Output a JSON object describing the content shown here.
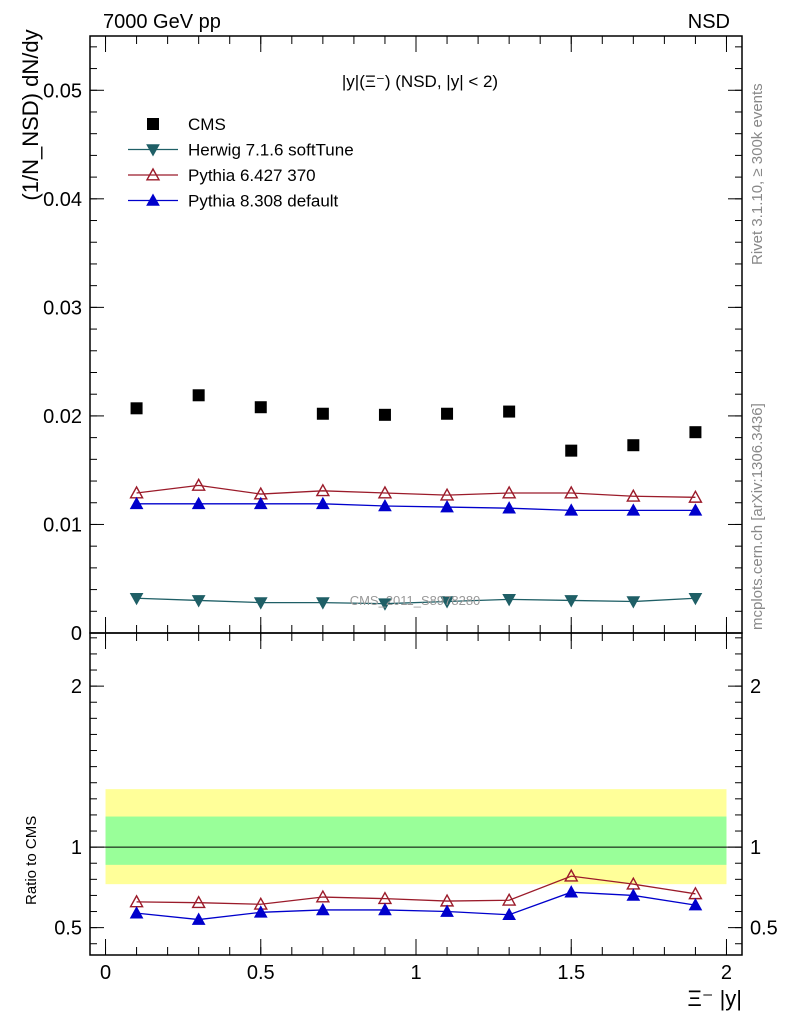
{
  "header": {
    "left": "7000 GeV pp",
    "right": "NSD"
  },
  "side_labels": {
    "rivet": "Rivet 3.1.10, ≥ 300k events",
    "mcplots": "mcplots.cern.ch [arXiv:1306.3436]"
  },
  "colors": {
    "cms": "#000000",
    "herwig": "#1f5f66",
    "pythia6": "#9b1b2a",
    "pythia8": "#0000cc",
    "band_outer": "#ffff99",
    "band_inner": "#99ff99",
    "watermark": "#999999"
  },
  "chart_data": [
    {
      "type": "scatter",
      "title": "|y|(Ξ⁻) (NSD, |y| < 2)",
      "watermark": "CMS_2011_S8978280",
      "ylabel": "(1/N_NSD) dN/dy",
      "ylim": [
        0,
        0.055
      ],
      "yticks": [
        0,
        0.01,
        0.02,
        0.03,
        0.04,
        0.05
      ],
      "ytick_labels": [
        "0",
        "0.01",
        "0.02",
        "0.03",
        "0.04",
        "0.05"
      ],
      "x": [
        0.1,
        0.3,
        0.5,
        0.7,
        0.9,
        1.1,
        1.3,
        1.5,
        1.7,
        1.9
      ],
      "legend_position": "top-left",
      "series": [
        {
          "name": "CMS",
          "key": "cms",
          "marker": "square",
          "line": false,
          "values": [
            0.0207,
            0.0219,
            0.0208,
            0.0202,
            0.0201,
            0.0202,
            0.0204,
            0.0168,
            0.0173,
            0.0185
          ]
        },
        {
          "name": "Herwig 7.1.6 softTune",
          "key": "herwig",
          "marker": "triangle-down",
          "line": true,
          "values": [
            0.0032,
            0.003,
            0.0028,
            0.0028,
            0.0027,
            0.0029,
            0.0031,
            0.003,
            0.0029,
            0.0032
          ]
        },
        {
          "name": "Pythia 6.427 370",
          "key": "pythia6",
          "marker": "triangle-open",
          "line": true,
          "values": [
            0.0129,
            0.0136,
            0.0128,
            0.0131,
            0.0129,
            0.0127,
            0.0129,
            0.0129,
            0.0126,
            0.0125
          ]
        },
        {
          "name": "Pythia 8.308 default",
          "key": "pythia8",
          "marker": "triangle-up",
          "line": true,
          "values": [
            0.0119,
            0.0119,
            0.0119,
            0.0119,
            0.0117,
            0.0116,
            0.0115,
            0.0113,
            0.0113,
            0.0113
          ]
        }
      ]
    },
    {
      "type": "line",
      "ylabel": "Ratio to CMS",
      "xlabel": "Ξ⁻ |y|",
      "xlim": [
        -0.05,
        2.05
      ],
      "xticks": [
        0,
        0.5,
        1,
        1.5,
        2
      ],
      "xtick_labels": [
        "0",
        "0.5",
        "1",
        "1.5",
        "2"
      ],
      "ylim": [
        0.33,
        2.33
      ],
      "yticks": [
        0.5,
        1,
        2
      ],
      "ytick_labels": [
        "0.5",
        "1",
        "2"
      ],
      "reference_line": 1,
      "band_outer": [
        0.77,
        1.36
      ],
      "band_inner": [
        0.89,
        1.19
      ],
      "x": [
        0.1,
        0.3,
        0.5,
        0.7,
        0.9,
        1.1,
        1.3,
        1.5,
        1.7,
        1.9
      ],
      "series": [
        {
          "name": "Pythia 6.427 370",
          "key": "pythia6",
          "marker": "triangle-open",
          "values": [
            0.66,
            0.655,
            0.645,
            0.69,
            0.68,
            0.665,
            0.67,
            0.82,
            0.77,
            0.71
          ]
        },
        {
          "name": "Pythia 8.308 default",
          "key": "pythia8",
          "marker": "triangle-up",
          "values": [
            0.59,
            0.55,
            0.595,
            0.61,
            0.61,
            0.6,
            0.58,
            0.72,
            0.7,
            0.64
          ]
        }
      ]
    }
  ]
}
